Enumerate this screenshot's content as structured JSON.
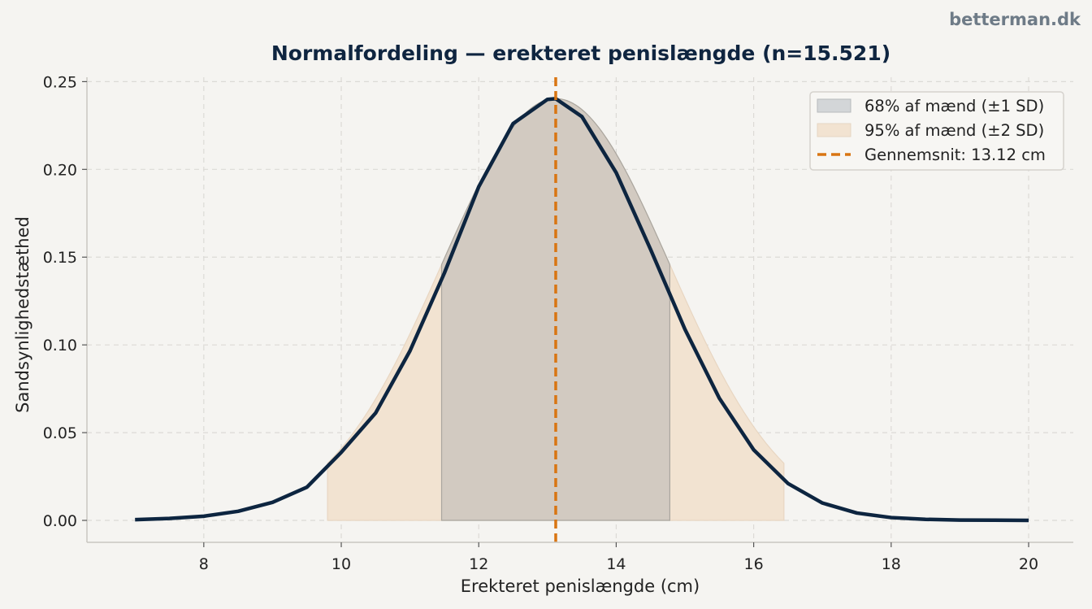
{
  "watermark": "betterman.dk",
  "chart_data": {
    "type": "line",
    "title": "Normalfordeling — erekteret penislængde (n=15.521)",
    "xlabel": "Erekteret penislængde (cm)",
    "ylabel": "Sandsynlighedstæthed",
    "xlim": [
      6.3,
      20.65
    ],
    "ylim": [
      -0.0125,
      0.2525
    ],
    "xticks": [
      8,
      10,
      12,
      14,
      16,
      18,
      20
    ],
    "xtick_labels": [
      "8",
      "10",
      "12",
      "14",
      "16",
      "18",
      "20"
    ],
    "yticks": [
      0.0,
      0.05,
      0.1,
      0.15,
      0.2,
      0.25
    ],
    "ytick_labels": [
      "0.00",
      "0.05",
      "0.10",
      "0.15",
      "0.20",
      "0.25"
    ],
    "grid": true,
    "legend_position": "top-right",
    "curve": {
      "x": [
        7,
        7.5,
        8,
        8.5,
        9,
        9.5,
        10,
        10.5,
        11,
        11.5,
        12,
        12.5,
        13,
        13.12,
        13.5,
        14,
        14.5,
        15,
        15.5,
        16,
        16.5,
        17,
        17.5,
        18,
        18.5,
        19,
        19.5,
        20
      ],
      "y": [
        0.0004,
        0.0011,
        0.0024,
        0.0052,
        0.0103,
        0.0189,
        0.0388,
        0.0612,
        0.0966,
        0.1409,
        0.1901,
        0.2261,
        0.2399,
        0.2403,
        0.2301,
        0.1981,
        0.1544,
        0.1089,
        0.0696,
        0.0402,
        0.021,
        0.0099,
        0.0042,
        0.0016,
        0.0006,
        0.0002,
        0.0001,
        0.0
      ]
    },
    "mean": 13.12,
    "sd": 1.66,
    "series": [
      {
        "name": "68% af mænd (±1 SD)",
        "range": [
          11.46,
          14.78
        ],
        "color": "#bdbfbd"
      },
      {
        "name": "95% af mænd (±2 SD)",
        "range": [
          9.8,
          16.44
        ],
        "color": "#f2e3d1"
      },
      {
        "name": "Gennemsnit: 13.12 cm",
        "x": 13.12,
        "color": "#d97512"
      }
    ],
    "colors": {
      "curve": "#0d2540",
      "band68": "#b8b6b4",
      "band95": "#f2e3d1",
      "mean_line": "#d97512",
      "grid": "#dcdad6",
      "text": "#222222",
      "title": "#0f2540",
      "background": "#f5f4f1"
    }
  }
}
